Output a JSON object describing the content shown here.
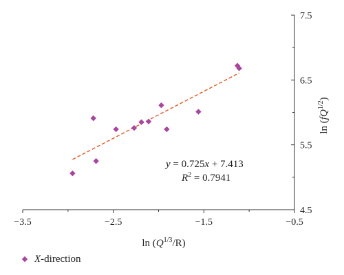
{
  "chart_data": {
    "type": "scatter",
    "title": "",
    "xlabel": "ln (Q^{1/3}/R)",
    "ylabel": "ln (fQ^{1/2})",
    "xlim": [
      -3.5,
      -0.5
    ],
    "ylim": [
      4.5,
      7.5
    ],
    "x_ticks": [
      "−3.5",
      "−2.5",
      "−1.5",
      "−0.5"
    ],
    "y_ticks": [
      "4.5",
      "5.5",
      "6.5",
      "7.5"
    ],
    "grid": false,
    "y_axis_side": "right",
    "legend_position": "bottom-left",
    "series": [
      {
        "name": "X-direction",
        "color": "#a8459c",
        "marker": "diamond",
        "points": [
          {
            "x": -2.95,
            "y": 5.06
          },
          {
            "x": -2.72,
            "y": 5.91
          },
          {
            "x": -2.69,
            "y": 5.25
          },
          {
            "x": -2.47,
            "y": 5.74
          },
          {
            "x": -2.27,
            "y": 5.76
          },
          {
            "x": -2.19,
            "y": 5.85
          },
          {
            "x": -2.11,
            "y": 5.86
          },
          {
            "x": -1.97,
            "y": 6.11
          },
          {
            "x": -1.91,
            "y": 5.74
          },
          {
            "x": -1.56,
            "y": 6.01
          },
          {
            "x": -1.13,
            "y": 6.72
          },
          {
            "x": -1.11,
            "y": 6.68
          }
        ]
      }
    ],
    "trendline": {
      "color": "#e2571e",
      "style": "dashed",
      "slope": 0.725,
      "intercept": 7.413,
      "x_range": [
        -2.95,
        -1.11
      ]
    },
    "annotations": {
      "equation_prefix": "y",
      "equation_body": " = 0.725",
      "equation_x": "x",
      "equation_rest": " + 7.413",
      "r2_label": "R",
      "r2_sup": "2",
      "r2_value": " = 0.7941"
    }
  },
  "legend": {
    "label_italic": "X",
    "label_rest": "-direction"
  },
  "axis_text": {
    "x_prefix": "ln (",
    "x_q": "Q",
    "x_sup": "1/3",
    "x_suffix": "/R)",
    "y_prefix": "ln (",
    "y_fq": "fQ",
    "y_sup": "1/2",
    "y_suffix": ")"
  }
}
